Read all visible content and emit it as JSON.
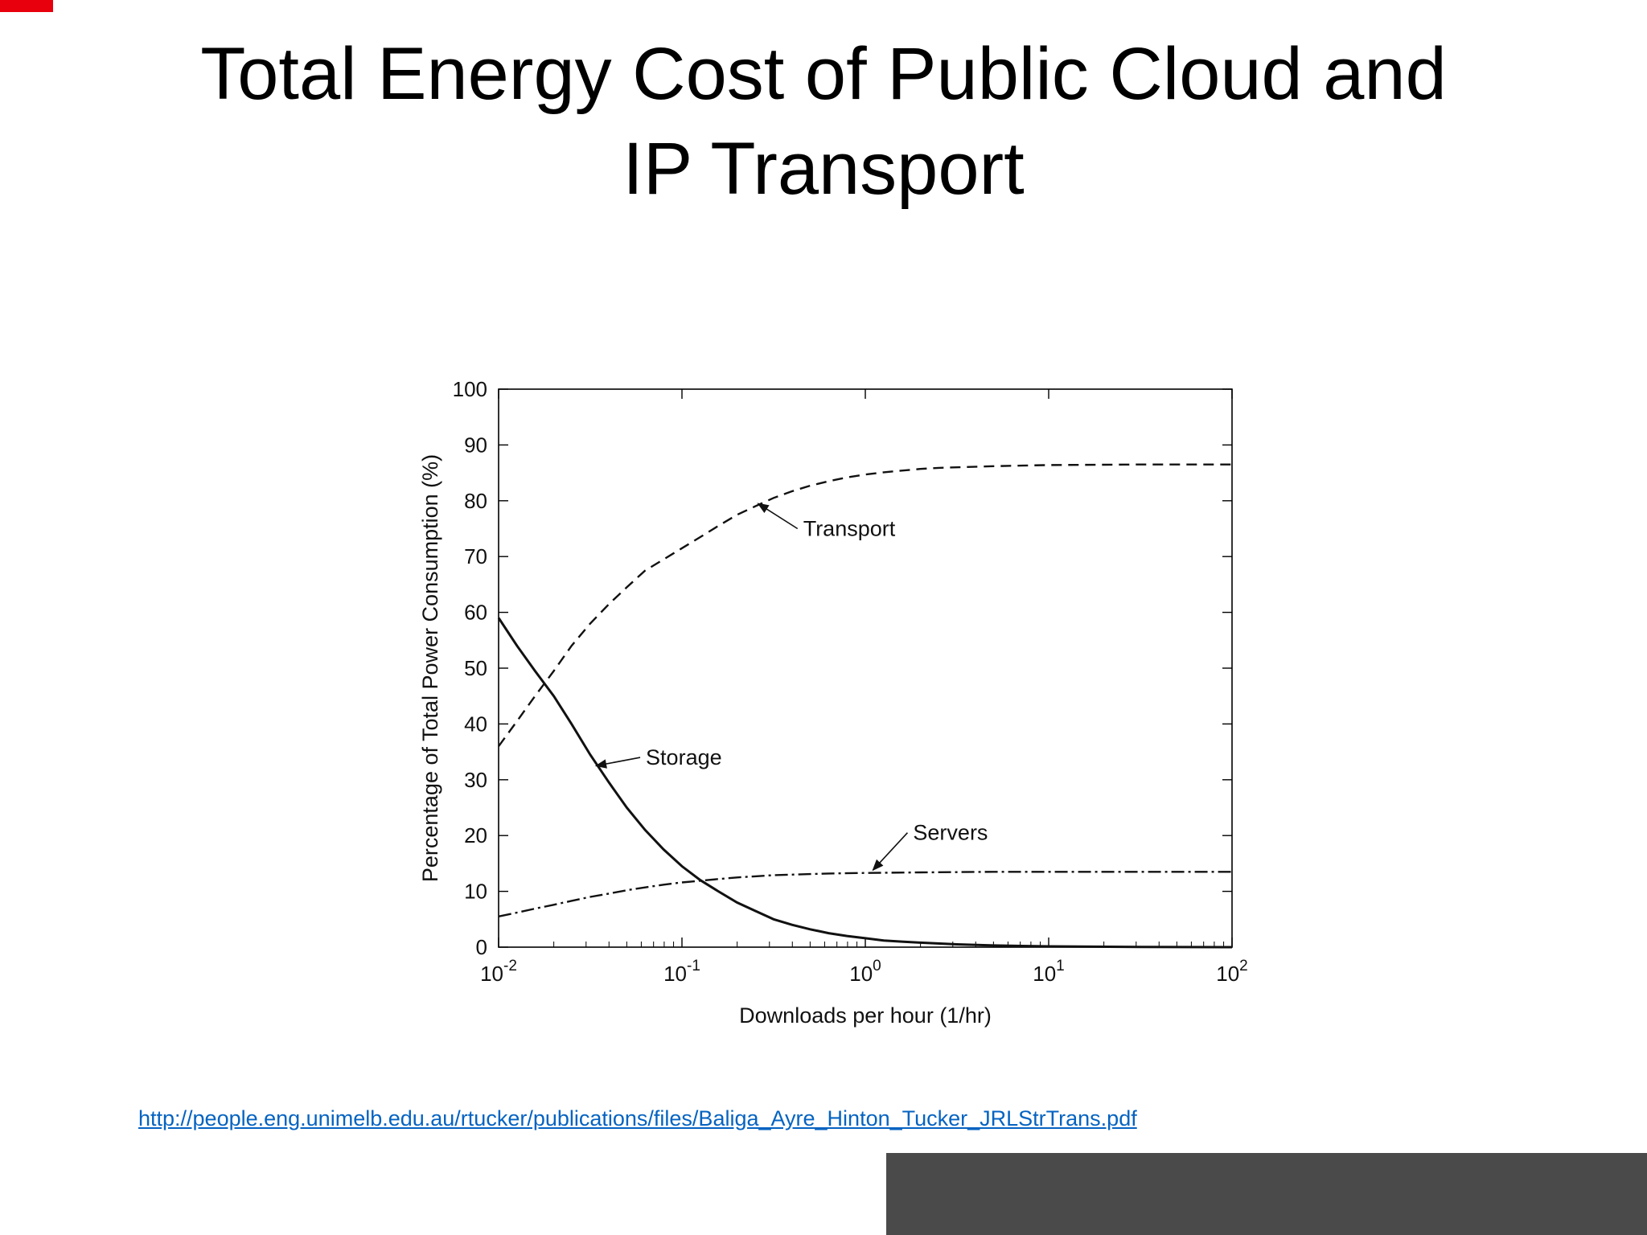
{
  "slide": {
    "title_line1": "Total Energy Cost of Public Cloud and",
    "title_line2": "IP Transport"
  },
  "footer": {
    "link_text": "http://people.eng.unimelb.edu.au/rtucker/publications/files/Baliga_Ayre_Hinton_Tucker_JRLStrTrans.pdf",
    "link_href": "http://people.eng.unimelb.edu.au/rtucker/publications/files/Baliga_Ayre_Hinton_Tucker_JRLStrTrans.pdf"
  },
  "colors": {
    "link_blue": "#0563c1",
    "line_color": "#111111",
    "gray_panel": "#4a4a4a",
    "red_strip": "#e8000d"
  },
  "chart_data": {
    "type": "line",
    "title": "",
    "xlabel": "Downloads per hour (1/hr)",
    "ylabel": "Percentage of Total Power Consumption (%)",
    "x_scale": "log",
    "xlim": [
      0.01,
      100
    ],
    "ylim": [
      0,
      100
    ],
    "grid": false,
    "legend": "inline-annotations",
    "y_ticks": [
      0,
      10,
      20,
      30,
      40,
      50,
      60,
      70,
      80,
      90,
      100
    ],
    "x_tick_exponents": [
      -2,
      -1,
      0,
      1,
      2
    ],
    "series": [
      {
        "name": "Transport",
        "style": "dashed",
        "points": [
          [
            0.01,
            36
          ],
          [
            0.0126,
            40.5
          ],
          [
            0.0158,
            45
          ],
          [
            0.02,
            49.5
          ],
          [
            0.025,
            54
          ],
          [
            0.0316,
            58
          ],
          [
            0.04,
            61.5
          ],
          [
            0.05,
            64.5
          ],
          [
            0.063,
            67.5
          ],
          [
            0.0794,
            69.5
          ],
          [
            0.1,
            71.5
          ],
          [
            0.126,
            73.5
          ],
          [
            0.158,
            75.5
          ],
          [
            0.2,
            77.5
          ],
          [
            0.251,
            79
          ],
          [
            0.316,
            80.5
          ],
          [
            0.398,
            81.7
          ],
          [
            0.5,
            82.7
          ],
          [
            0.631,
            83.5
          ],
          [
            0.794,
            84.2
          ],
          [
            1,
            84.7
          ],
          [
            1.26,
            85.1
          ],
          [
            1.58,
            85.4
          ],
          [
            2,
            85.7
          ],
          [
            2.51,
            85.9
          ],
          [
            3.16,
            86
          ],
          [
            5,
            86.2
          ],
          [
            10,
            86.4
          ],
          [
            31.6,
            86.5
          ],
          [
            100,
            86.5
          ]
        ]
      },
      {
        "name": "Storage",
        "style": "solid",
        "points": [
          [
            0.01,
            59
          ],
          [
            0.0126,
            54
          ],
          [
            0.0158,
            49.5
          ],
          [
            0.02,
            45
          ],
          [
            0.025,
            40
          ],
          [
            0.0316,
            34.5
          ],
          [
            0.04,
            29.5
          ],
          [
            0.05,
            25
          ],
          [
            0.063,
            21
          ],
          [
            0.0794,
            17.5
          ],
          [
            0.1,
            14.5
          ],
          [
            0.126,
            12
          ],
          [
            0.158,
            10
          ],
          [
            0.2,
            8
          ],
          [
            0.251,
            6.5
          ],
          [
            0.316,
            5
          ],
          [
            0.398,
            4
          ],
          [
            0.5,
            3.2
          ],
          [
            0.631,
            2.5
          ],
          [
            0.794,
            2
          ],
          [
            1,
            1.6
          ],
          [
            1.26,
            1.2
          ],
          [
            1.58,
            1
          ],
          [
            2,
            0.8
          ],
          [
            3.16,
            0.5
          ],
          [
            5,
            0.3
          ],
          [
            10,
            0.15
          ],
          [
            31.6,
            0.05
          ],
          [
            100,
            0
          ]
        ]
      },
      {
        "name": "Servers",
        "style": "dashdot",
        "points": [
          [
            0.01,
            5.5
          ],
          [
            0.0126,
            6.2
          ],
          [
            0.0158,
            6.9
          ],
          [
            0.02,
            7.6
          ],
          [
            0.025,
            8.3
          ],
          [
            0.0316,
            9
          ],
          [
            0.04,
            9.6
          ],
          [
            0.05,
            10.2
          ],
          [
            0.063,
            10.7
          ],
          [
            0.0794,
            11.2
          ],
          [
            0.1,
            11.6
          ],
          [
            0.126,
            11.9
          ],
          [
            0.158,
            12.2
          ],
          [
            0.2,
            12.5
          ],
          [
            0.251,
            12.7
          ],
          [
            0.316,
            12.9
          ],
          [
            0.398,
            13
          ],
          [
            0.5,
            13.1
          ],
          [
            0.631,
            13.2
          ],
          [
            1,
            13.3
          ],
          [
            2,
            13.4
          ],
          [
            5,
            13.5
          ],
          [
            10,
            13.5
          ],
          [
            31.6,
            13.5
          ],
          [
            100,
            13.5
          ]
        ]
      }
    ],
    "annotations": [
      {
        "label": "Transport",
        "text_x": 0.44,
        "text_y": 75,
        "arrow_x": 0.26,
        "arrow_y": 79.5
      },
      {
        "label": "Storage",
        "text_x": 0.061,
        "text_y": 34,
        "arrow_x": 0.034,
        "arrow_y": 32.5
      },
      {
        "label": "Servers",
        "text_x": 1.75,
        "text_y": 20.5,
        "arrow_x": 1.1,
        "arrow_y": 13.8
      }
    ]
  }
}
